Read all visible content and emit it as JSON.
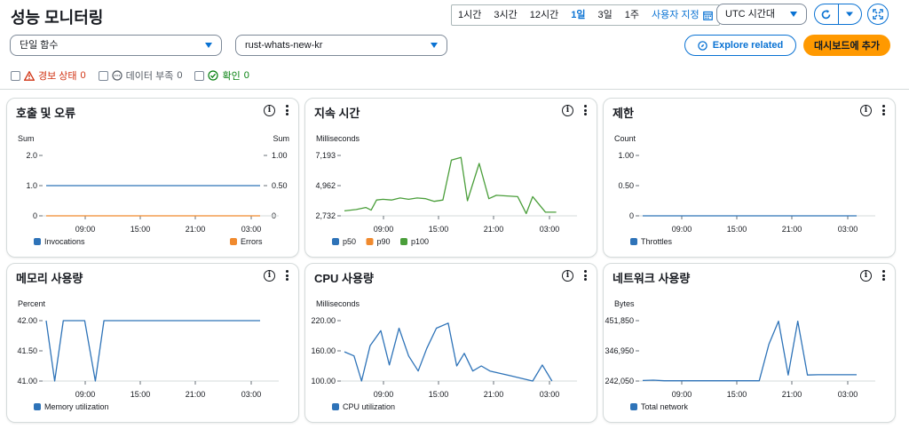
{
  "header": {
    "title": "성능 모니터링",
    "time_ranges": [
      "1시간",
      "3시간",
      "12시간",
      "1일",
      "3일",
      "1주"
    ],
    "active_range": "1일",
    "custom_label": "사용자 지정",
    "timezone": "UTC 시간대"
  },
  "filters_bar": {
    "function_select": "단일 함수",
    "function_name": "rust-whats-new-kr",
    "explore_label": "Explore related",
    "add_dashboard_label": "대시보드에 추가",
    "alarm_label": "경보 상태",
    "alarm_count": "0",
    "insufficient_label": "데이터 부족",
    "insufficient_count": "0",
    "ok_label": "확인",
    "ok_count": "0"
  },
  "colors": {
    "blue": "#2e73b8",
    "orange": "#f08a2e",
    "green": "#4a9e3a",
    "accent": "#0972d3",
    "alarm": "#d13212",
    "ok": "#037f0c"
  },
  "panels": [
    {
      "title": "호출 및 오류"
    },
    {
      "title": "지속 시간"
    },
    {
      "title": "제한"
    },
    {
      "title": "메모리 사용량"
    },
    {
      "title": "CPU 사용량"
    },
    {
      "title": "네트워크 사용량"
    }
  ],
  "chart_data": [
    {
      "type": "line",
      "title": "호출 및 오류",
      "ylabel": "Sum",
      "ylabel_right": "Sum",
      "y_ticks": [
        "2.0",
        "1.0",
        "0"
      ],
      "y_ticks_right": [
        "1.00",
        "0.50",
        "0"
      ],
      "ylim": [
        0,
        2
      ],
      "ylim_right": [
        0,
        1
      ],
      "x_ticks": [
        "09:00",
        "15:00",
        "21:00",
        "03:00"
      ],
      "series": [
        {
          "name": "Invocations",
          "color": "blue",
          "axis": "left",
          "x": [
            0,
            1
          ],
          "y": [
            1,
            1
          ]
        },
        {
          "name": "Errors",
          "color": "orange",
          "axis": "right",
          "x": [
            0,
            1
          ],
          "y": [
            0,
            0
          ]
        }
      ]
    },
    {
      "type": "line",
      "title": "지속 시간",
      "ylabel": "Milliseconds",
      "y_ticks": [
        "7,193",
        "4,962",
        "2,732"
      ],
      "ylim": [
        2732,
        7193
      ],
      "x_ticks": [
        "09:00",
        "15:00",
        "21:00",
        "03:00"
      ],
      "legend": [
        {
          "name": "p50",
          "color": "blue"
        },
        {
          "name": "p90",
          "color": "orange"
        },
        {
          "name": "p100",
          "color": "green"
        }
      ],
      "series": [
        {
          "name": "p100",
          "color": "green",
          "axis": "left",
          "x": [
            0,
            0.055,
            0.1,
            0.125,
            0.15,
            0.18,
            0.22,
            0.26,
            0.3,
            0.34,
            0.38,
            0.42,
            0.46,
            0.5,
            0.545,
            0.575,
            0.63,
            0.675,
            0.71,
            0.76,
            0.81,
            0.85,
            0.88,
            0.94,
            0.99
          ],
          "y": [
            3100,
            3200,
            3350,
            3150,
            3900,
            3950,
            3900,
            4050,
            3950,
            4050,
            4000,
            3800,
            3900,
            6850,
            7050,
            3850,
            6600,
            4000,
            4250,
            4200,
            4150,
            2900,
            4150,
            3000,
            3000
          ]
        }
      ]
    },
    {
      "type": "line",
      "title": "제한",
      "ylabel": "Count",
      "y_ticks": [
        "1.00",
        "0.50",
        "0"
      ],
      "ylim": [
        0,
        1
      ],
      "x_ticks": [
        "09:00",
        "15:00",
        "21:00",
        "03:00"
      ],
      "series": [
        {
          "name": "Throttles",
          "color": "blue",
          "axis": "left",
          "x": [
            0,
            1
          ],
          "y": [
            0,
            0
          ]
        }
      ]
    },
    {
      "type": "line",
      "title": "메모리 사용량",
      "ylabel": "Percent",
      "y_ticks": [
        "42.00",
        "41.50",
        "41.00"
      ],
      "ylim": [
        41,
        42
      ],
      "x_ticks": [
        "09:00",
        "15:00",
        "21:00",
        "03:00"
      ],
      "series": [
        {
          "name": "Memory utilization",
          "color": "blue",
          "axis": "left",
          "x": [
            0,
            0.04,
            0.08,
            0.18,
            0.23,
            0.27,
            1
          ],
          "y": [
            42,
            41,
            42,
            42,
            41,
            42,
            42
          ]
        }
      ]
    },
    {
      "type": "line",
      "title": "CPU 사용량",
      "ylabel": "Milliseconds",
      "y_ticks": [
        "220.00",
        "160.00",
        "100.00"
      ],
      "ylim": [
        100,
        220
      ],
      "x_ticks": [
        "09:00",
        "15:00",
        "21:00",
        "03:00"
      ],
      "series": [
        {
          "name": "CPU utilization",
          "color": "blue",
          "axis": "left",
          "x": [
            0,
            0.045,
            0.08,
            0.12,
            0.17,
            0.21,
            0.255,
            0.3,
            0.345,
            0.385,
            0.43,
            0.485,
            0.525,
            0.56,
            0.6,
            0.64,
            0.68,
            0.78,
            0.88,
            0.925,
            0.97
          ],
          "y": [
            158,
            150,
            100,
            170,
            200,
            132,
            205,
            150,
            120,
            165,
            205,
            215,
            130,
            155,
            120,
            130,
            120,
            110,
            100,
            132,
            100
          ]
        }
      ]
    },
    {
      "type": "line",
      "title": "네트워크 사용량",
      "ylabel": "Bytes",
      "y_ticks": [
        "451,850",
        "346,950",
        "242,050"
      ],
      "ylim": [
        242050,
        451850
      ],
      "x_ticks": [
        "09:00",
        "15:00",
        "21:00",
        "03:00"
      ],
      "series": [
        {
          "name": "Total network",
          "color": "blue",
          "axis": "left",
          "x": [
            0,
            0.05,
            0.1,
            0.2,
            0.3,
            0.4,
            0.5,
            0.545,
            0.59,
            0.635,
            0.68,
            0.725,
            0.77,
            0.82,
            0.87,
            0.92,
            1
          ],
          "y": [
            244000,
            245000,
            243000,
            243000,
            243000,
            243000,
            243000,
            243000,
            370000,
            450000,
            263000,
            450000,
            263000,
            264000,
            264000,
            264000,
            264000
          ]
        }
      ]
    }
  ]
}
